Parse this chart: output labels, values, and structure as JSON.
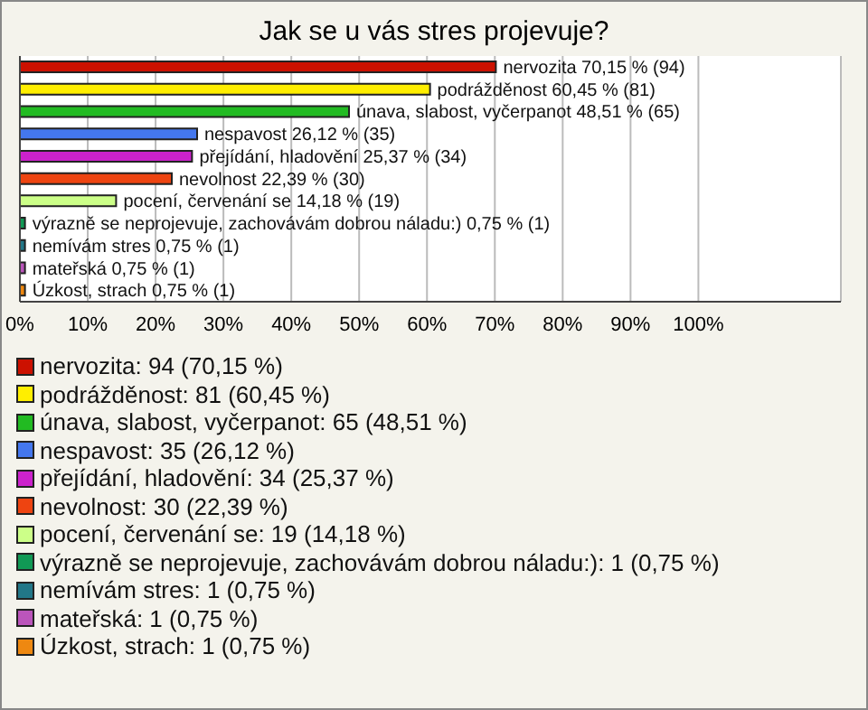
{
  "chart_data": {
    "type": "bar",
    "orientation": "horizontal",
    "stacked": true,
    "title": "Jak se u vás stres projevuje?",
    "categories": [
      null,
      null,
      null,
      null,
      null,
      null,
      null,
      null,
      null,
      null,
      null
    ],
    "series": [
      {
        "name": "nervozita: 94 (70,15 %)",
        "color": "#cc1100",
        "values": [
          70.15,
          null,
          null,
          null,
          null,
          null,
          null,
          null,
          null,
          null,
          null
        ],
        "value_labels": [
          "nervozita 70,15 % (94)",
          null,
          null,
          null,
          null,
          null,
          null,
          null,
          null,
          null,
          null
        ]
      },
      {
        "name": "podrážděnost: 81 (60,45 %)",
        "color": "#ffee00",
        "values": [
          null,
          60.45,
          null,
          null,
          null,
          null,
          null,
          null,
          null,
          null,
          null
        ],
        "value_labels": [
          null,
          "podrážděnost 60,45 % (81)",
          null,
          null,
          null,
          null,
          null,
          null,
          null,
          null,
          null
        ]
      },
      {
        "name": "únava, slabost, vyčerpanot: 65 (48,51 %)",
        "color": "#22bb22",
        "values": [
          null,
          null,
          48.51,
          null,
          null,
          null,
          null,
          null,
          null,
          null,
          null
        ],
        "value_labels": [
          null,
          null,
          "únava, slabost, vyčerpanot 48,51 % (65)",
          null,
          null,
          null,
          null,
          null,
          null,
          null,
          null
        ]
      },
      {
        "name": "nespavost: 35 (26,12 %)",
        "color": "#4477ee",
        "values": [
          null,
          null,
          null,
          26.12,
          null,
          null,
          null,
          null,
          null,
          null,
          null
        ],
        "value_labels": [
          null,
          null,
          null,
          "nespavost 26,12 % (35)",
          null,
          null,
          null,
          null,
          null,
          null,
          null
        ]
      },
      {
        "name": "přejídání, hladovění: 34 (25,37 %)",
        "color": "#cc22cc",
        "values": [
          null,
          null,
          null,
          null,
          25.37,
          null,
          null,
          null,
          null,
          null,
          null
        ],
        "value_labels": [
          null,
          null,
          null,
          null,
          "přejídání, hladovění 25,37 % (34)",
          null,
          null,
          null,
          null,
          null,
          null
        ]
      },
      {
        "name": "nevolnost: 30 (22,39 %)",
        "color": "#ee4411",
        "values": [
          null,
          null,
          null,
          null,
          null,
          22.39,
          null,
          null,
          null,
          null,
          null
        ],
        "value_labels": [
          null,
          null,
          null,
          null,
          null,
          "nevolnost 22,39 % (30)",
          null,
          null,
          null,
          null,
          null
        ]
      },
      {
        "name": "pocení, červenání se: 19 (14,18 %)",
        "color": "#ccff88",
        "values": [
          null,
          null,
          null,
          null,
          null,
          null,
          14.18,
          null,
          null,
          null,
          null
        ],
        "value_labels": [
          null,
          null,
          null,
          null,
          null,
          null,
          "pocení, červenání se 14,18 % (19)",
          null,
          null,
          null,
          null
        ]
      },
      {
        "name": "výrazně se neprojevuje, zachovávám dobrou náladu:): 1 (0,75 %)",
        "color": "#119955",
        "values": [
          null,
          null,
          null,
          null,
          null,
          null,
          null,
          0.75,
          null,
          null,
          null
        ],
        "value_labels": [
          null,
          null,
          null,
          null,
          null,
          null,
          null,
          "výrazně se neprojevuje, zachovávám dobrou náladu:) 0,75 % (1)",
          null,
          null,
          null
        ]
      },
      {
        "name": "nemívám stres: 1 (0,75 %)",
        "color": "#227788",
        "values": [
          null,
          null,
          null,
          null,
          null,
          null,
          null,
          null,
          0.75,
          null,
          null
        ],
        "value_labels": [
          null,
          null,
          null,
          null,
          null,
          null,
          null,
          null,
          "nemívám stres 0,75 % (1)",
          null,
          null
        ]
      },
      {
        "name": "mateřská: 1 (0,75 %)",
        "color": "#bb55bb",
        "values": [
          null,
          null,
          null,
          null,
          null,
          null,
          null,
          null,
          null,
          0.75,
          null
        ],
        "value_labels": [
          null,
          null,
          null,
          null,
          null,
          null,
          null,
          null,
          null,
          "mateřská 0,75 % (1)",
          null
        ]
      },
      {
        "name": "Úzkost, strach: 1 (0,75 %)",
        "color": "#ee8811",
        "values": [
          null,
          null,
          null,
          null,
          null,
          null,
          null,
          null,
          null,
          null,
          0.75
        ],
        "value_labels": [
          null,
          null,
          null,
          null,
          null,
          null,
          null,
          null,
          null,
          null,
          "Úzkost, strach 0,75 % (1)"
        ]
      }
    ],
    "xlim": [
      0,
      121
    ],
    "xticks": [
      {
        "value": 0,
        "label": "0%"
      },
      {
        "value": 10,
        "label": "10%"
      },
      {
        "value": 20,
        "label": "20%"
      },
      {
        "value": 30,
        "label": "30%"
      },
      {
        "value": 40,
        "label": "40%"
      },
      {
        "value": 50,
        "label": "50%"
      },
      {
        "value": 60,
        "label": "60%"
      },
      {
        "value": 70,
        "label": "70%"
      },
      {
        "value": 80,
        "label": "80%"
      },
      {
        "value": 90,
        "label": "90%"
      },
      {
        "value": 100,
        "label": "100%"
      }
    ],
    "grid": "x",
    "legend": "bottom",
    "tick_labels": "x"
  }
}
